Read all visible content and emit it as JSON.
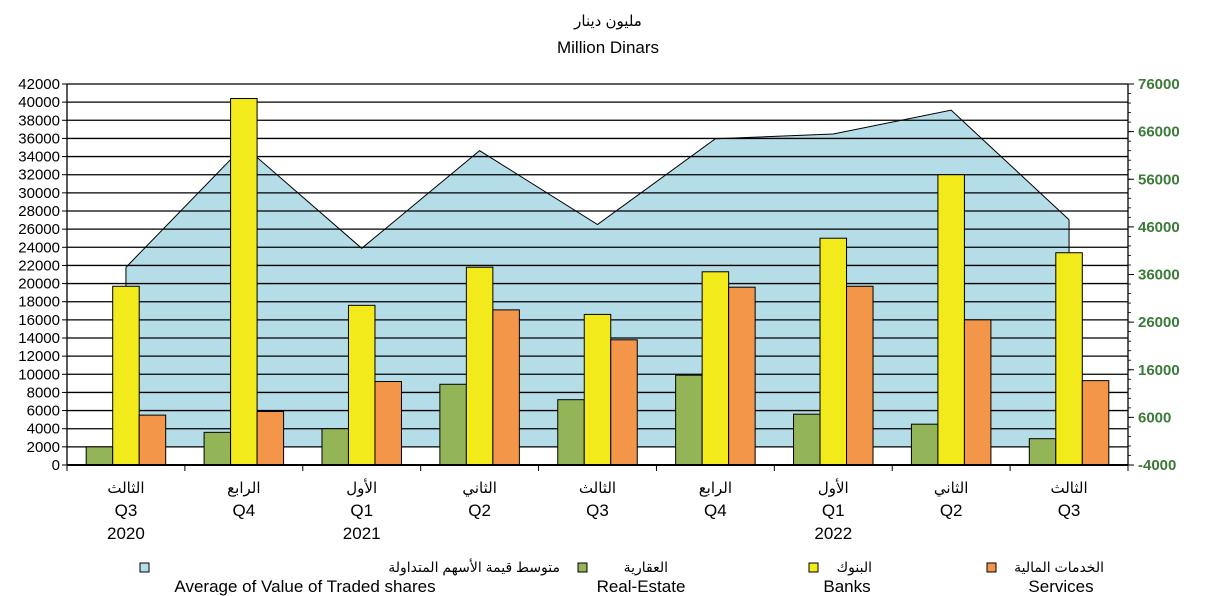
{
  "chart_data": {
    "type": "bar",
    "title_ar": "مليون دينار",
    "title_en": "Million Dinars",
    "left_axis": {
      "min": 0,
      "max": 42000,
      "step": 2000,
      "ticks": [
        "0",
        "2000",
        "4000",
        "6000",
        "8000",
        "10000",
        "12000",
        "14000",
        "16000",
        "18000",
        "20000",
        "22000",
        "24000",
        "26000",
        "28000",
        "30000",
        "32000",
        "34000",
        "36000",
        "38000",
        "40000",
        "42000"
      ]
    },
    "right_axis": {
      "min": -4000,
      "max": 76000,
      "step": 10000,
      "ticks": [
        "-4000",
        "6000",
        "16000",
        "26000",
        "36000",
        "46000",
        "56000",
        "66000",
        "76000"
      ]
    },
    "categories": [
      {
        "ar": "الثالث",
        "q": "Q3",
        "year": "2020"
      },
      {
        "ar": "الرابع",
        "q": "Q4",
        "year": ""
      },
      {
        "ar": "الأول",
        "q": "Q1",
        "year": "2021"
      },
      {
        "ar": "الثاني",
        "q": "Q2",
        "year": ""
      },
      {
        "ar": "الثالث",
        "q": "Q3",
        "year": ""
      },
      {
        "ar": "الرابع",
        "q": "Q4",
        "year": ""
      },
      {
        "ar": "الأول",
        "q": "Q1",
        "year": "2022"
      },
      {
        "ar": "الثاني",
        "q": "Q2",
        "year": ""
      },
      {
        "ar": "الثالث",
        "q": "Q3",
        "year": ""
      }
    ],
    "series": [
      {
        "key": "realestate",
        "name_ar": "العقارية",
        "name_en": "Real-Estate",
        "axis": "left",
        "kind": "bar",
        "color": "#93b557",
        "values": [
          2000,
          3600,
          4000,
          8900,
          7200,
          9900,
          5600,
          4500,
          2900
        ]
      },
      {
        "key": "banks",
        "name_ar": "البنوك",
        "name_en": "Banks",
        "axis": "left",
        "kind": "bar",
        "color": "#f2ea1b",
        "values": [
          19700,
          40400,
          17600,
          21800,
          16600,
          21300,
          25000,
          32000,
          23400
        ]
      },
      {
        "key": "services",
        "name_ar": "الخدمات المالية",
        "name_en": "Services",
        "axis": "left",
        "kind": "bar",
        "color": "#f49649",
        "values": [
          5500,
          5900,
          9200,
          17100,
          13800,
          19600,
          19700,
          16000,
          9300
        ]
      },
      {
        "key": "avg",
        "name_ar": "متوسط قيمة الأسهم المتداولة",
        "name_en": "Average of Value of Traded shares",
        "axis": "right",
        "kind": "area",
        "color": "#b4dde8",
        "values": [
          37500,
          63000,
          41500,
          62000,
          46500,
          64500,
          65500,
          70500,
          47500
        ]
      }
    ],
    "legend_order": [
      "avg",
      "realestate",
      "banks",
      "services"
    ],
    "legend_position": "bottom",
    "grid": true
  }
}
